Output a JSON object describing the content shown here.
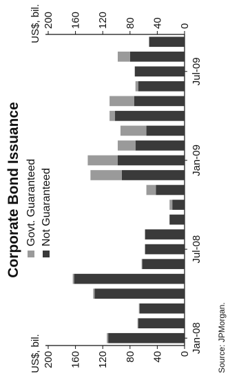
{
  "chart_data": {
    "type": "bar",
    "stacked": true,
    "title": "Corporate Bond Issuance",
    "source": "Source: JPMorgan.",
    "y_unit_left": "US$, bil.",
    "y_unit_right": "US$, bil.",
    "ylim": [
      0,
      200
    ],
    "y_ticks": [
      0,
      40,
      80,
      120,
      160,
      200
    ],
    "x_tick_labels": [
      "Jan-08",
      "Jul-08",
      "Jan-09",
      "Jul-09"
    ],
    "x_tick_index": [
      0,
      6,
      12,
      18
    ],
    "categories": [
      "Jan-08",
      "Feb-08",
      "Mar-08",
      "Apr-08",
      "May-08",
      "Jun-08",
      "Jul-08",
      "Aug-08",
      "Sep-08",
      "Oct-08",
      "Nov-08",
      "Dec-08",
      "Jan-09",
      "Feb-09",
      "Mar-09",
      "Apr-09",
      "May-09",
      "Jun-09",
      "Jul-09",
      "Aug-09",
      "Sep-09"
    ],
    "series": [
      {
        "name": "Not Guaranteed",
        "color": "#3a3a3a",
        "values": [
          112,
          68,
          66,
          132,
          162,
          62,
          58,
          58,
          22,
          18,
          42,
          92,
          98,
          72,
          56,
          102,
          74,
          68,
          73,
          80,
          52
        ]
      },
      {
        "name": "Govt. Guaranteed",
        "color": "#9a9a9a",
        "values": [
          2,
          1,
          1,
          2,
          2,
          1,
          0,
          0,
          0,
          4,
          14,
          46,
          44,
          26,
          38,
          8,
          36,
          4,
          0,
          18,
          0
        ]
      }
    ],
    "legend_placement": "top-left",
    "grid": false
  }
}
